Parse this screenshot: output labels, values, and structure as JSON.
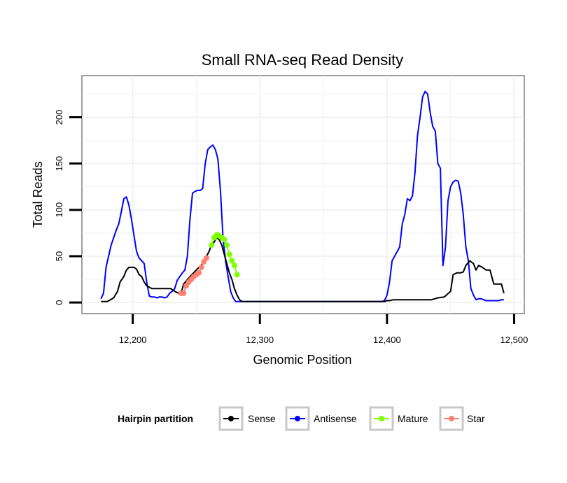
{
  "chart_data": {
    "type": "line",
    "title": "Small RNA-seq Read Density",
    "xlabel": "Genomic Position",
    "ylabel": "Total Reads",
    "xlim": [
      12160,
      12508
    ],
    "ylim": [
      -12,
      245
    ],
    "x_ticks": [
      12200,
      12300,
      12400,
      12500
    ],
    "x_tick_labels": [
      "12,200",
      "12,300",
      "12,400",
      "12,500"
    ],
    "y_ticks": [
      0,
      50,
      100,
      150,
      200
    ],
    "y_tick_labels": [
      "0",
      "50",
      "100",
      "150",
      "200"
    ],
    "grid": true,
    "legend": {
      "title": "Hairpin partition",
      "position": "bottom",
      "entries": [
        {
          "label": "Sense",
          "color": "#000000"
        },
        {
          "label": "Antisense",
          "color": "#0000ff"
        },
        {
          "label": "Mature",
          "color": "#7fff00"
        },
        {
          "label": "Star",
          "color": "#fa8072"
        }
      ]
    },
    "series": [
      {
        "name": "Antisense",
        "color": "#0000ff",
        "style": "line",
        "x": [
          12175,
          12177,
          12179,
          12181,
          12183,
          12185,
          12187,
          12189,
          12191,
          12193,
          12195,
          12197,
          12199,
          12201,
          12203,
          12205,
          12207,
          12209,
          12211,
          12213,
          12215,
          12217,
          12219,
          12221,
          12223,
          12225,
          12227,
          12229,
          12231,
          12233,
          12235,
          12237,
          12239,
          12241,
          12243,
          12245,
          12247,
          12249,
          12251,
          12253,
          12255,
          12257,
          12259,
          12261,
          12263,
          12265,
          12267,
          12269,
          12271,
          12273,
          12275,
          12277,
          12279,
          12281,
          12283,
          12285,
          12287,
          12289,
          12300,
          12320,
          12340,
          12360,
          12380,
          12396,
          12398,
          12400,
          12402,
          12404,
          12406,
          12408,
          12410,
          12412,
          12414,
          12416,
          12418,
          12420,
          12422,
          12424,
          12426,
          12428,
          12430,
          12432,
          12434,
          12436,
          12438,
          12440,
          12442,
          12444,
          12446,
          12448,
          12450,
          12452,
          12454,
          12456,
          12458,
          12460,
          12462,
          12464,
          12466,
          12468,
          12470,
          12472,
          12474,
          12476,
          12478,
          12480,
          12482,
          12484,
          12486,
          12488,
          12490,
          12492
        ],
        "y": [
          4,
          10,
          38,
          50,
          62,
          70,
          78,
          85,
          98,
          112,
          114,
          105,
          90,
          72,
          55,
          48,
          45,
          42,
          22,
          7,
          6,
          6,
          5,
          6,
          6,
          5,
          6,
          10,
          12,
          15,
          24,
          28,
          32,
          35,
          50,
          90,
          118,
          120,
          121,
          121,
          123,
          150,
          165,
          168,
          170,
          165,
          155,
          120,
          70,
          45,
          28,
          12,
          5,
          1,
          1,
          1,
          1,
          1,
          1,
          1,
          1,
          1,
          1,
          1,
          2,
          8,
          22,
          45,
          50,
          55,
          60,
          85,
          95,
          112,
          110,
          115,
          140,
          180,
          200,
          222,
          228,
          225,
          205,
          190,
          185,
          150,
          145,
          40,
          60,
          110,
          125,
          130,
          132,
          131,
          118,
          95,
          60,
          45,
          15,
          8,
          3,
          4,
          4,
          3,
          2,
          2,
          2,
          2,
          2,
          2,
          3,
          3
        ]
      },
      {
        "name": "Sense",
        "color": "#000000",
        "style": "line",
        "x": [
          12175,
          12180,
          12185,
          12188,
          12190,
          12193,
          12195,
          12197,
          12199,
          12201,
          12203,
          12205,
          12207,
          12209,
          12211,
          12215,
          12220,
          12225,
          12230,
          12233,
          12236,
          12238,
          12240,
          12245,
          12250,
          12255,
          12258,
          12260,
          12262,
          12264,
          12266,
          12268,
          12270,
          12272,
          12274,
          12276,
          12278,
          12280,
          12282,
          12284,
          12286,
          12288,
          12300,
          12320,
          12340,
          12360,
          12380,
          12396,
          12398,
          12400,
          12402,
          12405,
          12410,
          12415,
          12420,
          12425,
          12430,
          12435,
          12440,
          12445,
          12450,
          12452,
          12455,
          12458,
          12460,
          12462,
          12465,
          12468,
          12470,
          12472,
          12475,
          12478,
          12481,
          12484,
          12487,
          12490,
          12492
        ],
        "y": [
          1,
          1,
          5,
          12,
          22,
          28,
          35,
          38,
          38,
          38,
          36,
          30,
          28,
          22,
          18,
          15,
          15,
          15,
          15,
          12,
          10,
          10,
          20,
          28,
          35,
          42,
          50,
          55,
          62,
          65,
          70,
          68,
          62,
          52,
          42,
          32,
          25,
          15,
          8,
          3,
          1,
          1,
          1,
          1,
          1,
          1,
          1,
          1,
          1,
          2,
          2,
          3,
          3,
          3,
          3,
          3,
          3,
          3,
          5,
          6,
          12,
          30,
          32,
          32,
          33,
          40,
          45,
          42,
          35,
          40,
          38,
          35,
          35,
          20,
          20,
          20,
          10
        ]
      },
      {
        "name": "Star",
        "color": "#fa8072",
        "style": "points",
        "x": [
          12238,
          12240,
          12242,
          12244,
          12246,
          12248,
          12250,
          12252,
          12254,
          12256,
          12258
        ],
        "y": [
          10,
          10,
          18,
          22,
          25,
          28,
          30,
          32,
          38,
          44,
          48
        ]
      },
      {
        "name": "Mature",
        "color": "#7fff00",
        "style": "points",
        "x": [
          12262,
          12264,
          12266,
          12268,
          12270,
          12272,
          12274,
          12276,
          12278,
          12280,
          12282
        ],
        "y": [
          62,
          70,
          73,
          72,
          70,
          68,
          62,
          52,
          45,
          40,
          30
        ]
      }
    ]
  }
}
